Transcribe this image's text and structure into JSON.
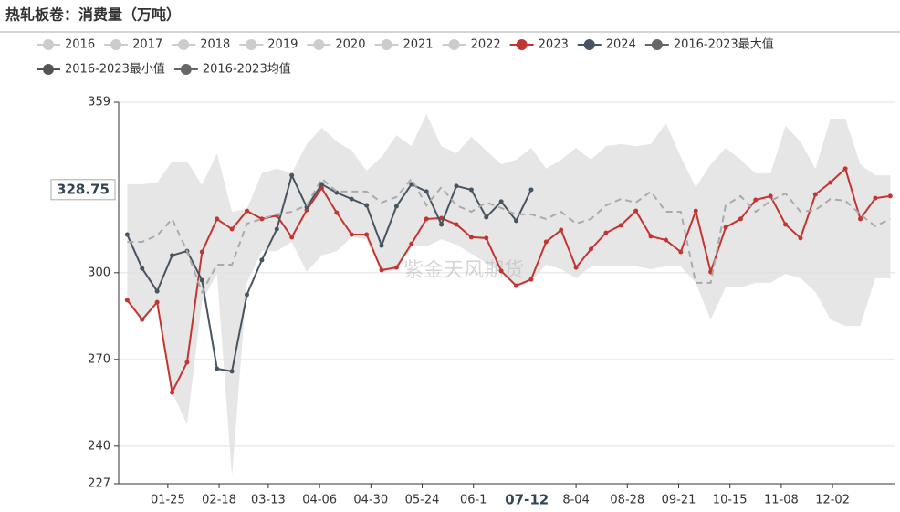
{
  "chart_data": {
    "type": "line",
    "title": "热轧板卷：消费量（万吨）",
    "watermark": "紫金天风期货",
    "xlim": [
      "01-02",
      "12-31"
    ],
    "xticks": [
      "01-25",
      "02-18",
      "03-13",
      "04-06",
      "04-30",
      "05-24",
      {
        "value": "06-17",
        "label": "06-1"
      },
      {
        "value": "08-04",
        "label": "8-04"
      },
      "08-28",
      "09-21",
      "10-15",
      "11-08",
      "12-02"
    ],
    "ylim": [
      227,
      359
    ],
    "yticks": [
      227,
      240,
      270,
      300,
      359
    ],
    "grid": true,
    "pointer": {
      "x": "07-12",
      "y": 328.75
    },
    "x": [
      "01-06",
      "01-13",
      "01-20",
      "01-27",
      "02-03",
      "02-10",
      "02-17",
      "02-24",
      "03-03",
      "03-10",
      "03-17",
      "03-24",
      "03-31",
      "04-07",
      "04-14",
      "04-21",
      "04-28",
      "05-05",
      "05-12",
      "05-19",
      "05-26",
      "06-02",
      "06-09",
      "06-16",
      "06-23",
      "06-30",
      "07-07",
      "07-14",
      "07-21",
      "07-28",
      "08-04",
      "08-11",
      "08-18",
      "08-25",
      "09-01",
      "09-08",
      "09-15",
      "09-22",
      "09-29",
      "10-06",
      "10-13",
      "10-20",
      "10-27",
      "11-03",
      "11-10",
      "11-17",
      "11-24",
      "12-01",
      "12-08",
      "12-15",
      "12-22",
      "12-29"
    ],
    "series": [
      {
        "name": "2016",
        "color": "#cccccc",
        "hidden": true
      },
      {
        "name": "2017",
        "color": "#cccccc",
        "hidden": true
      },
      {
        "name": "2018",
        "color": "#cccccc",
        "hidden": true
      },
      {
        "name": "2019",
        "color": "#cccccc",
        "hidden": true
      },
      {
        "name": "2020",
        "color": "#cccccc",
        "hidden": true
      },
      {
        "name": "2021",
        "color": "#cccccc",
        "hidden": true
      },
      {
        "name": "2022",
        "color": "#cccccc",
        "hidden": true
      },
      {
        "name": "2023",
        "color": "#c23531",
        "values": [
          290.5,
          283.8,
          289.8,
          258.6,
          269,
          307.2,
          318.6,
          315.1,
          321.4,
          318.6,
          319.8,
          312.3,
          321.7,
          329.3,
          320.8,
          313.2,
          313.2,
          300.9,
          301.8,
          310,
          318.6,
          318.9,
          316.7,
          312.3,
          312,
          300.6,
          295.5,
          297.7,
          310.7,
          314.8,
          301.8,
          308.2,
          313.8,
          316.4,
          321.4,
          312.6,
          311.3,
          307.2,
          321.4,
          300.3,
          315.7,
          318.6,
          325.2,
          326.5,
          316.7,
          312,
          327.1,
          331.2,
          336,
          318.6,
          325.8,
          326.5
        ]
      },
      {
        "name": "2024",
        "color": "#465564",
        "values": [
          313.2,
          301.5,
          293.6,
          306,
          307.5,
          297.4,
          266.8,
          265.9,
          292.4,
          304.4,
          315.1,
          333.7,
          322.7,
          330.6,
          327.7,
          325.5,
          323.3,
          309.4,
          323,
          330.6,
          328.1,
          316.7,
          330,
          328.7,
          319.2,
          324.6,
          318,
          328.7,
          null,
          null,
          null,
          null,
          null,
          null,
          null,
          null,
          null,
          null,
          null,
          null,
          null,
          null,
          null,
          null,
          null,
          null,
          null,
          null,
          null,
          null,
          null,
          null
        ]
      },
      {
        "name": "2016-2023最大值",
        "color": "#666666",
        "area": "upper",
        "fill": "#e6e6e6",
        "values": [
          330.6,
          330.6,
          331.2,
          338.5,
          338.5,
          330.3,
          341.3,
          321.1,
          322,
          334.4,
          336,
          334.4,
          344.5,
          350.2,
          345.4,
          342.3,
          335.3,
          340.1,
          347.6,
          343.8,
          354.9,
          343.8,
          341.3,
          347,
          342.3,
          337.5,
          339.1,
          343.2,
          336,
          339.1,
          343.2,
          339.1,
          343.8,
          344.5,
          343.8,
          344.5,
          351.7,
          340.1,
          329.6,
          337.5,
          343.2,
          339.1,
          334.4,
          334.4,
          350.8,
          345.4,
          336,
          353.3,
          353.3,
          337.5,
          333.7,
          333.7
        ]
      },
      {
        "name": "2016-2023最小值",
        "color": "#555555",
        "area": "lower",
        "values": [
          290.2,
          283,
          289,
          258.6,
          247.5,
          290.2,
          299.6,
          229.5,
          296.5,
          307.5,
          307.5,
          310.7,
          300.3,
          306,
          307.5,
          312.3,
          311.6,
          300,
          301,
          309.1,
          309.1,
          311.6,
          309.7,
          306.6,
          303.4,
          300,
          295,
          297,
          302.8,
          301.2,
          298.1,
          302.2,
          302.2,
          302.2,
          302.2,
          301.2,
          302.2,
          302.2,
          296.5,
          283.8,
          294.9,
          294.9,
          296.5,
          296.5,
          299.6,
          298.1,
          293.3,
          283.8,
          281.6,
          281.6,
          298.1,
          298.1
        ]
      },
      {
        "name": "2016-2023均值",
        "color": "#666666",
        "line_style": "dashed",
        "line_color": "#aaaaaa",
        "values": [
          310.7,
          310.7,
          312.9,
          318.6,
          307.5,
          293.3,
          302.8,
          302.8,
          317,
          318.6,
          320.2,
          321.1,
          323.3,
          332.5,
          328.1,
          328.1,
          328.1,
          324.3,
          326.2,
          332.5,
          323.3,
          329.6,
          323.3,
          321.1,
          324.3,
          322.4,
          320.2,
          320.2,
          318.6,
          321.1,
          317,
          318.6,
          323.3,
          325.5,
          324.3,
          328.1,
          321.1,
          321.1,
          296.5,
          296.5,
          323.3,
          326.5,
          321.1,
          324.9,
          327.4,
          321.1,
          321.7,
          325.5,
          324.9,
          320.2,
          316.1,
          318.6
        ]
      }
    ]
  }
}
